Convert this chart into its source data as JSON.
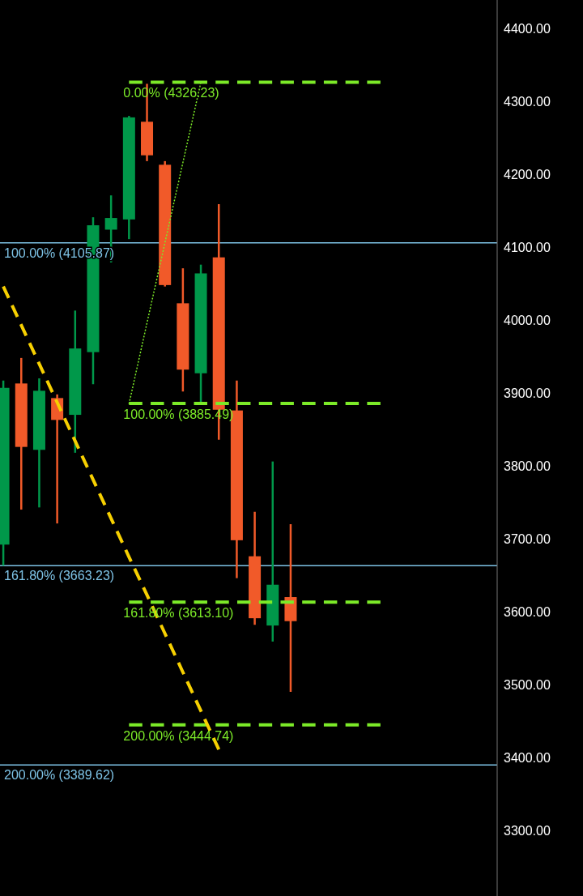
{
  "chart_data": {
    "type": "candlestick",
    "categories": [
      null,
      null,
      null,
      null,
      null,
      null,
      null,
      null,
      null,
      null,
      null,
      null,
      null,
      null,
      null,
      null,
      null,
      null,
      null,
      null,
      null,
      null,
      null,
      null,
      null,
      null,
      null,
      null
    ],
    "ylim": [
      3210,
      4439
    ],
    "yticks": [
      {
        "value": 3300,
        "label": "3300.00"
      },
      {
        "value": 3400,
        "label": "3400.00"
      },
      {
        "value": 3500,
        "label": "3500.00"
      },
      {
        "value": 3600,
        "label": "3600.00"
      },
      {
        "value": 3700,
        "label": "3700.00"
      },
      {
        "value": 3800,
        "label": "3800.00"
      },
      {
        "value": 3900,
        "label": "3900.00"
      },
      {
        "value": 4000,
        "label": "4000.00"
      },
      {
        "value": 4100,
        "label": "4100.00"
      },
      {
        "value": 4200,
        "label": "4200.00"
      },
      {
        "value": 4300,
        "label": "4300.00"
      },
      {
        "value": 4400,
        "label": "4400.00"
      }
    ],
    "tick_labels": "y",
    "grid": false,
    "ohlc": [
      [
        3692,
        3917,
        3663,
        3907
      ],
      [
        3913,
        3948,
        3740,
        3826
      ],
      [
        3822,
        3920,
        3743,
        3903
      ],
      [
        3893,
        3898,
        3721,
        3863
      ],
      [
        3870,
        4013,
        3818,
        3961
      ],
      [
        3956,
        4141,
        3912,
        4130
      ],
      [
        4124,
        4171,
        4079,
        4140
      ],
      [
        4138,
        4280,
        4111,
        4278
      ],
      [
        4272,
        4324,
        4218,
        4226
      ],
      [
        4213,
        4218,
        4046,
        4048
      ],
      [
        4023,
        4071,
        3902,
        3932
      ],
      [
        3927,
        4076,
        3884,
        4064
      ],
      [
        4086,
        4159,
        3836,
        3877
      ],
      [
        3876,
        3917,
        3646,
        3698
      ],
      [
        3676,
        3737,
        3582,
        3591
      ],
      [
        3581,
        3806,
        3559,
        3637
      ],
      [
        3620,
        3720,
        3490,
        3587
      ],
      null,
      null,
      null,
      null,
      null,
      null,
      null,
      null,
      null,
      null,
      null
    ],
    "series": [
      {
        "type": "line",
        "color": "#7cea28",
        "line_style": "dashed",
        "values": [
          null,
          null,
          null,
          null,
          null,
          null,
          null,
          4326.23,
          4326.23,
          4326.23,
          4326.23,
          4326.23,
          4326.23,
          4326.23,
          4326.23,
          4326.23,
          4326.23,
          4326.23,
          4326.23,
          4326.23,
          4326.23,
          4326.23,
          null,
          null,
          null,
          null,
          null,
          null
        ]
      },
      {
        "type": "line",
        "color": "#7cea28",
        "line_style": "dashed",
        "values": [
          null,
          null,
          null,
          null,
          null,
          null,
          null,
          3885.49,
          3885.49,
          3885.49,
          3885.49,
          3885.49,
          3885.49,
          3885.49,
          3885.49,
          3885.49,
          3885.49,
          3885.49,
          3885.49,
          3885.49,
          3885.49,
          3885.49,
          null,
          null,
          null,
          null,
          null,
          null
        ]
      },
      {
        "type": "line",
        "color": "#7cea28",
        "line_style": "dashed",
        "values": [
          null,
          null,
          null,
          null,
          null,
          null,
          null,
          3613.1,
          3613.1,
          3613.1,
          3613.1,
          3613.1,
          3613.1,
          3613.1,
          3613.1,
          3613.1,
          3613.1,
          3613.1,
          3613.1,
          3613.1,
          3613.1,
          3613.1,
          null,
          null,
          null,
          null,
          null,
          null
        ]
      },
      {
        "type": "line",
        "color": "#7cea28",
        "line_style": "dashed",
        "values": [
          null,
          null,
          null,
          null,
          null,
          null,
          null,
          3444.74,
          3444.74,
          3444.74,
          3444.74,
          3444.74,
          3444.74,
          3444.74,
          3444.74,
          3444.74,
          3444.74,
          3444.74,
          3444.74,
          3444.74,
          3444.74,
          3444.74,
          null,
          null,
          null,
          null,
          null,
          null
        ]
      },
      {
        "type": "line",
        "color": "#7cea28",
        "line_style": "dotted",
        "values": [
          null,
          null,
          null,
          null,
          null,
          null,
          null,
          3885,
          3996,
          4106,
          4216,
          4326,
          null,
          null,
          null,
          null,
          null,
          null,
          null,
          null,
          null,
          null,
          null,
          null,
          null,
          null,
          null,
          null
        ]
      },
      {
        "type": "line",
        "color": "#f7d000",
        "line_style": "dashed",
        "values": [
          4046,
          3993,
          3940,
          3887,
          3834,
          3781,
          3728,
          3675,
          3623,
          3570,
          3517,
          3464,
          3411,
          null,
          null,
          null,
          null,
          null,
          null,
          null,
          null,
          null,
          null,
          null,
          null,
          null,
          null,
          null
        ]
      }
    ],
    "ref_lines": [
      {
        "axis": "y",
        "value": 4105.87,
        "label": "100.00% (4105.87)",
        "color": "#7ec3e6"
      },
      {
        "axis": "y",
        "value": 3663.23,
        "label": "161.80% (3663.23)",
        "color": "#7ec3e6"
      },
      {
        "axis": "y",
        "value": 3389.62,
        "label": "200.00% (3389.62)",
        "color": "#7ec3e6"
      }
    ],
    "annotations": [
      {
        "text": "0.00% (4326.23)",
        "y": 4326.23
      },
      {
        "text": "100.00% (3885.49)",
        "y": 3885.49
      },
      {
        "text": "161.80% (3613.10)",
        "y": 3613.1
      },
      {
        "text": "200.00% (3444.74)",
        "y": 3444.74
      }
    ]
  }
}
